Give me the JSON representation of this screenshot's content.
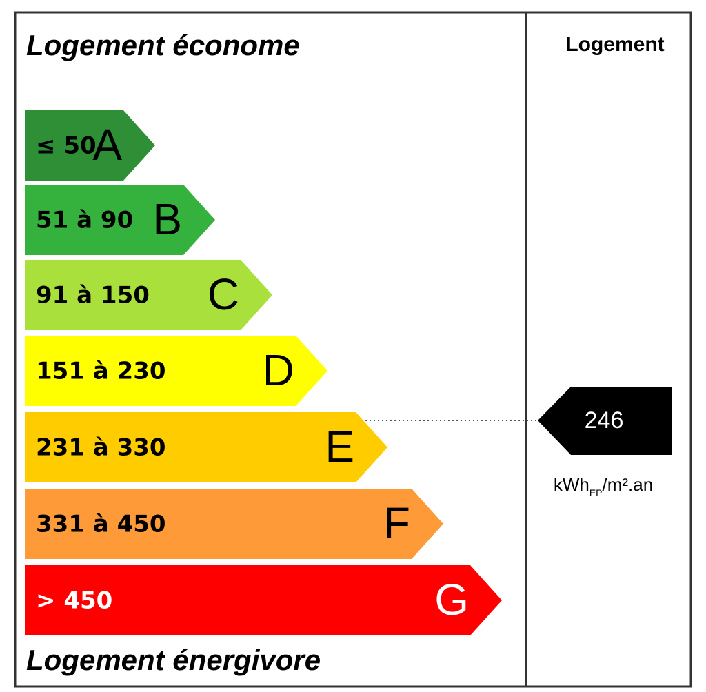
{
  "header": {
    "title": "Logement économe",
    "footer": "Logement énergivore",
    "column_title": "Logement"
  },
  "ratings": [
    {
      "range": "≤ 50",
      "letter": "A",
      "color": "#2f8f36",
      "text_color": "#000000"
    },
    {
      "range": "51 à 90",
      "letter": "B",
      "color": "#35b13d",
      "text_color": "#000000"
    },
    {
      "range": "91 à 150",
      "letter": "C",
      "color": "#a9e03c",
      "text_color": "#000000"
    },
    {
      "range": "151 à 230",
      "letter": "D",
      "color": "#ffff00",
      "text_color": "#000000"
    },
    {
      "range": "231 à 330",
      "letter": "E",
      "color": "#ffcc00",
      "text_color": "#000000"
    },
    {
      "range": "331 à 450",
      "letter": "F",
      "color": "#ff9a38",
      "text_color": "#000000"
    },
    {
      "range": "> 450",
      "letter": "G",
      "color": "#ff0000",
      "text_color": "#ffffff"
    }
  ],
  "result": {
    "value": "246",
    "unit_main": "kWh",
    "unit_sub": "EP",
    "unit_rest": "/m².an"
  }
}
